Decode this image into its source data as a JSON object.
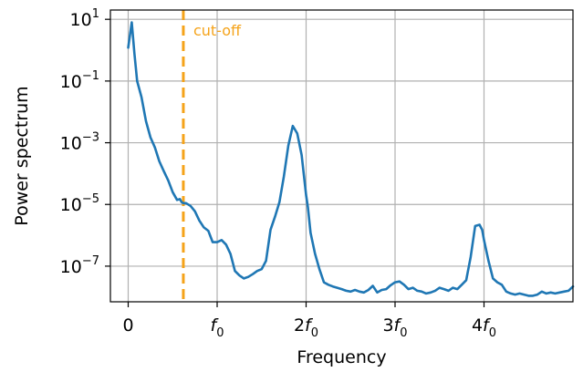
{
  "chart_data": {
    "type": "line",
    "title": "",
    "xlabel": "Frequency",
    "ylabel": "Power spectrum",
    "xlim": [
      -0.2,
      5.0
    ],
    "ylim": [
      7e-09,
      20
    ],
    "yscale": "log",
    "grid": true,
    "x_ticks": [
      {
        "value": 0,
        "label": "0",
        "sub": ""
      },
      {
        "value": 1,
        "label": "f",
        "sub": "0"
      },
      {
        "value": 2,
        "label": "2f",
        "sub": "0"
      },
      {
        "value": 3,
        "label": "3f",
        "sub": "0"
      },
      {
        "value": 4,
        "label": "4f",
        "sub": "0"
      }
    ],
    "y_ticks": [
      {
        "value": 10,
        "base": "10",
        "exp": "1"
      },
      {
        "value": 0.1,
        "base": "10",
        "exp": "−1"
      },
      {
        "value": 0.001,
        "base": "10",
        "exp": "−3"
      },
      {
        "value": 1e-05,
        "base": "10",
        "exp": "−5"
      },
      {
        "value": 1e-07,
        "base": "10",
        "exp": "−7"
      }
    ],
    "series": [
      {
        "color": "#1f77b4",
        "x": [
          0.0,
          0.04,
          0.07,
          0.1,
          0.15,
          0.2,
          0.25,
          0.3,
          0.35,
          0.4,
          0.45,
          0.5,
          0.55,
          0.58,
          0.6,
          0.62,
          0.65,
          0.7,
          0.75,
          0.8,
          0.85,
          0.9,
          0.95,
          1.0,
          1.05,
          1.1,
          1.15,
          1.2,
          1.25,
          1.3,
          1.35,
          1.4,
          1.45,
          1.5,
          1.55,
          1.6,
          1.65,
          1.7,
          1.75,
          1.8,
          1.85,
          1.9,
          1.95,
          2.0,
          2.02,
          2.05,
          2.1,
          2.15,
          2.2,
          2.25,
          2.3,
          2.35,
          2.4,
          2.45,
          2.5,
          2.55,
          2.6,
          2.65,
          2.7,
          2.75,
          2.8,
          2.85,
          2.9,
          2.95,
          3.0,
          3.05,
          3.1,
          3.15,
          3.2,
          3.25,
          3.3,
          3.35,
          3.4,
          3.45,
          3.5,
          3.55,
          3.6,
          3.65,
          3.7,
          3.75,
          3.8,
          3.85,
          3.9,
          3.95,
          3.98,
          4.0,
          4.05,
          4.1,
          4.15,
          4.2,
          4.25,
          4.3,
          4.35,
          4.4,
          4.45,
          4.5,
          4.55,
          4.6,
          4.65,
          4.7,
          4.75,
          4.8,
          4.85,
          4.9,
          4.95,
          5.0
        ],
        "y": [
          1.2,
          8.0,
          0.8,
          0.1,
          0.03,
          0.005,
          0.0015,
          0.0007,
          0.00025,
          0.00012,
          6e-05,
          2.5e-05,
          1.4e-05,
          1.5e-05,
          1.2e-05,
          1.1e-05,
          1.1e-05,
          9e-06,
          6e-06,
          3e-06,
          1.8e-06,
          1.4e-06,
          6e-07,
          6e-07,
          7e-07,
          5e-07,
          2.5e-07,
          7e-08,
          5e-08,
          4e-08,
          4.5e-08,
          5.5e-08,
          7e-08,
          8e-08,
          1.5e-07,
          1.5e-06,
          4e-06,
          1.2e-05,
          8e-05,
          0.0008,
          0.0035,
          0.002,
          0.0004,
          2e-05,
          8e-06,
          1.2e-06,
          2.5e-07,
          8e-08,
          3e-08,
          2.5e-08,
          2.2e-08,
          2e-08,
          1.8e-08,
          1.6e-08,
          1.5e-08,
          1.7e-08,
          1.5e-08,
          1.4e-08,
          1.7e-08,
          2.3e-08,
          1.4e-08,
          1.7e-08,
          1.8e-08,
          2.4e-08,
          3e-08,
          3.2e-08,
          2.5e-08,
          1.8e-08,
          2e-08,
          1.6e-08,
          1.5e-08,
          1.3e-08,
          1.4e-08,
          1.6e-08,
          2e-08,
          1.8e-08,
          1.6e-08,
          2e-08,
          1.8e-08,
          2.5e-08,
          3.5e-08,
          2e-07,
          2e-06,
          2.2e-06,
          1.5e-06,
          7e-07,
          1.5e-07,
          4e-08,
          3e-08,
          2.5e-08,
          1.5e-08,
          1.3e-08,
          1.2e-08,
          1.3e-08,
          1.2e-08,
          1.1e-08,
          1.1e-08,
          1.2e-08,
          1.5e-08,
          1.3e-08,
          1.4e-08,
          1.3e-08,
          1.4e-08,
          1.5e-08,
          1.6e-08,
          2.2e-08
        ]
      }
    ],
    "annotations": [
      {
        "type": "vline",
        "x": 0.62,
        "color": "#f5a31a",
        "style": "dashed",
        "label": "cut-off"
      }
    ]
  }
}
